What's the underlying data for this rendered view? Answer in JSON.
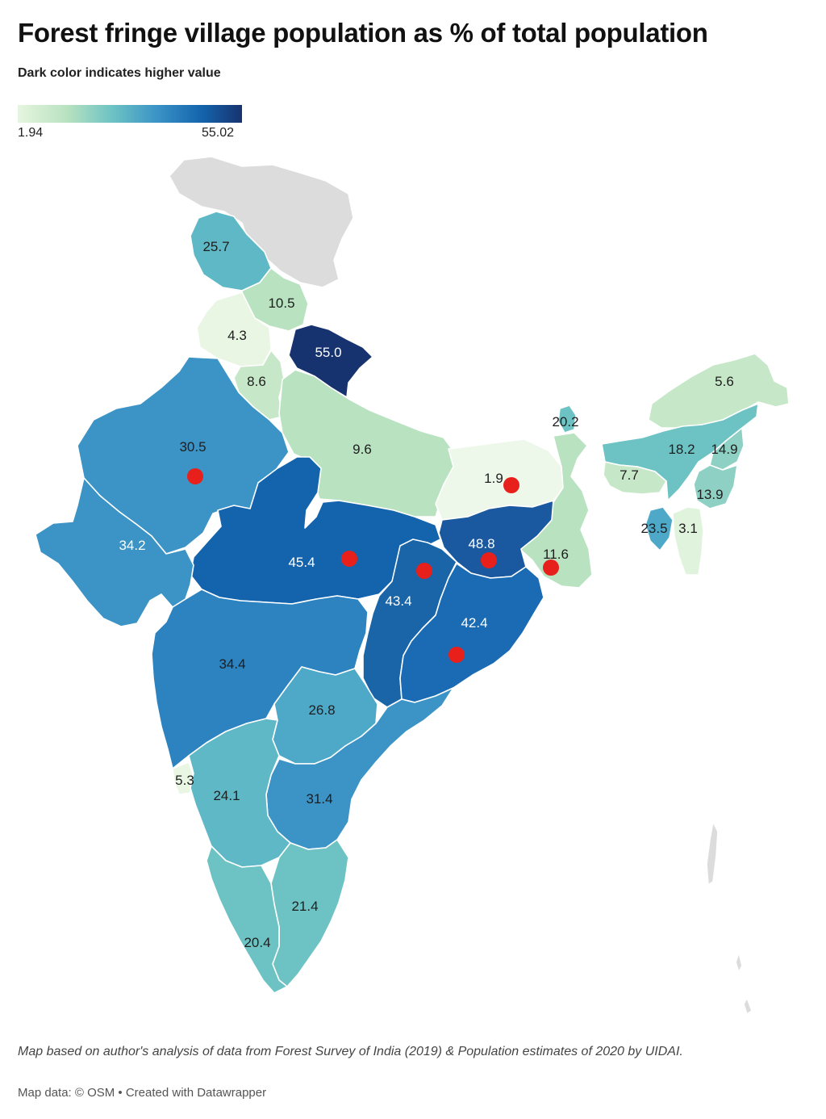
{
  "header": {
    "title": "Forest fringe village population as % of total population",
    "legend_description": "Dark color indicates higher value",
    "legend_min": "1.94",
    "legend_max": "55.02"
  },
  "map": {
    "colors": {
      "no_data": "#dcdcdc",
      "lightest": "#e8f6e3",
      "light": "#b8e2c0",
      "mid_light": "#6dc3c4",
      "mid": "#3b93c6",
      "dark": "#1464ad",
      "darkest": "#17336f",
      "marker": "#e8201c",
      "border": "#ffffff"
    },
    "regions": {
      "jammu_kashmir": "25.7",
      "himachal": "10.5",
      "punjab": "4.3",
      "uttarakhand": "55.0",
      "haryana": "8.6",
      "rajasthan": "30.5",
      "uttar_pradesh": "9.6",
      "bihar": "1.9",
      "sikkim": "20.2",
      "arunachal": "5.6",
      "assam": "18.2",
      "nagaland": "14.9",
      "meghalaya": "7.7",
      "manipur": "13.9",
      "tripura": "23.5",
      "mizoram": "3.1",
      "gujarat": "34.2",
      "madhya_pradesh": "45.4",
      "jharkhand": "48.8",
      "west_bengal": "11.6",
      "chhattisgarh": "43.4",
      "odisha": "42.4",
      "maharashtra": "34.4",
      "telangana": "26.8",
      "goa": "5.3",
      "karnataka": "24.1",
      "andhra_pradesh": "31.4",
      "tamil_nadu": "21.4",
      "kerala": "20.4"
    }
  },
  "footer": {
    "note": "Map based on author's analysis of data from Forest Survey of India (2019) & Population estimates of 2020 by UIDAI.",
    "credit": "Map data: © OSM • Created with Datawrapper"
  }
}
